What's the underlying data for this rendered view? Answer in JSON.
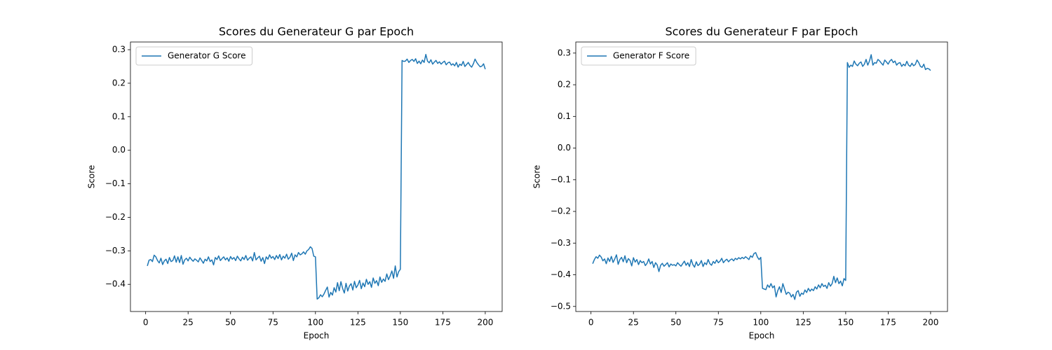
{
  "chart_data": [
    {
      "type": "line",
      "title": "Scores du Generateur G par Epoch",
      "xlabel": "Epoch",
      "ylabel": "Score",
      "x": [
        1,
        2,
        3,
        4,
        5,
        6,
        7,
        8,
        9,
        10,
        11,
        12,
        13,
        14,
        15,
        16,
        17,
        18,
        19,
        20,
        21,
        22,
        23,
        24,
        25,
        26,
        27,
        28,
        29,
        30,
        31,
        32,
        33,
        34,
        35,
        36,
        37,
        38,
        39,
        40,
        41,
        42,
        43,
        44,
        45,
        46,
        47,
        48,
        49,
        50,
        51,
        52,
        53,
        54,
        55,
        56,
        57,
        58,
        59,
        60,
        61,
        62,
        63,
        64,
        65,
        66,
        67,
        68,
        69,
        70,
        71,
        72,
        73,
        74,
        75,
        76,
        77,
        78,
        79,
        80,
        81,
        82,
        83,
        84,
        85,
        86,
        87,
        88,
        89,
        90,
        91,
        92,
        93,
        94,
        95,
        96,
        97,
        98,
        99,
        100,
        101,
        102,
        103,
        104,
        105,
        106,
        107,
        108,
        109,
        110,
        111,
        112,
        113,
        114,
        115,
        116,
        117,
        118,
        119,
        120,
        121,
        122,
        123,
        124,
        125,
        126,
        127,
        128,
        129,
        130,
        131,
        132,
        133,
        134,
        135,
        136,
        137,
        138,
        139,
        140,
        141,
        142,
        143,
        144,
        145,
        146,
        147,
        148,
        149,
        150,
        151,
        152,
        153,
        154,
        155,
        156,
        157,
        158,
        159,
        160,
        161,
        162,
        163,
        164,
        165,
        166,
        167,
        168,
        169,
        170,
        171,
        172,
        173,
        174,
        175,
        176,
        177,
        178,
        179,
        180,
        181,
        182,
        183,
        184,
        185,
        186,
        187,
        188,
        189,
        190,
        191,
        192,
        193,
        194,
        195,
        196,
        197,
        198,
        199,
        200
      ],
      "series": [
        {
          "name": "Generator G Score",
          "color": "#1f77b4",
          "values": [
            -0.345,
            -0.328,
            -0.326,
            -0.332,
            -0.313,
            -0.318,
            -0.329,
            -0.336,
            -0.322,
            -0.341,
            -0.33,
            -0.325,
            -0.338,
            -0.32,
            -0.332,
            -0.329,
            -0.315,
            -0.334,
            -0.318,
            -0.335,
            -0.314,
            -0.34,
            -0.327,
            -0.322,
            -0.33,
            -0.319,
            -0.326,
            -0.331,
            -0.324,
            -0.328,
            -0.333,
            -0.321,
            -0.329,
            -0.337,
            -0.325,
            -0.33,
            -0.318,
            -0.332,
            -0.327,
            -0.342,
            -0.32,
            -0.326,
            -0.315,
            -0.329,
            -0.323,
            -0.318,
            -0.327,
            -0.321,
            -0.331,
            -0.317,
            -0.325,
            -0.32,
            -0.329,
            -0.316,
            -0.324,
            -0.33,
            -0.319,
            -0.326,
            -0.314,
            -0.328,
            -0.322,
            -0.318,
            -0.33,
            -0.305,
            -0.327,
            -0.321,
            -0.316,
            -0.331,
            -0.32,
            -0.338,
            -0.318,
            -0.325,
            -0.312,
            -0.322,
            -0.317,
            -0.326,
            -0.314,
            -0.323,
            -0.311,
            -0.327,
            -0.316,
            -0.322,
            -0.31,
            -0.325,
            -0.319,
            -0.307,
            -0.329,
            -0.312,
            -0.318,
            -0.305,
            -0.312,
            -0.309,
            -0.303,
            -0.31,
            -0.3,
            -0.296,
            -0.288,
            -0.293,
            -0.316,
            -0.318,
            -0.444,
            -0.44,
            -0.431,
            -0.437,
            -0.429,
            -0.418,
            -0.408,
            -0.438,
            -0.424,
            -0.432,
            -0.41,
            -0.423,
            -0.395,
            -0.419,
            -0.392,
            -0.412,
            -0.426,
            -0.397,
            -0.42,
            -0.405,
            -0.398,
            -0.417,
            -0.391,
            -0.41,
            -0.402,
            -0.388,
            -0.413,
            -0.396,
            -0.407,
            -0.385,
            -0.4,
            -0.392,
            -0.409,
            -0.381,
            -0.397,
            -0.389,
            -0.404,
            -0.378,
            -0.394,
            -0.384,
            -0.391,
            -0.369,
            -0.386,
            -0.375,
            -0.36,
            -0.382,
            -0.345,
            -0.378,
            -0.362,
            -0.355,
            0.268,
            0.265,
            0.266,
            0.272,
            0.262,
            0.268,
            0.271,
            0.265,
            0.273,
            0.259,
            0.266,
            0.258,
            0.269,
            0.262,
            0.286,
            0.266,
            0.261,
            0.27,
            0.257,
            0.263,
            0.268,
            0.259,
            0.264,
            0.257,
            0.262,
            0.266,
            0.255,
            0.261,
            0.263,
            0.254,
            0.258,
            0.252,
            0.262,
            0.248,
            0.257,
            0.253,
            0.265,
            0.25,
            0.256,
            0.262,
            0.253,
            0.248,
            0.258,
            0.272,
            0.262,
            0.255,
            0.249,
            0.251,
            0.258,
            0.242
          ]
        }
      ],
      "xlim": [
        -8.95,
        209.95
      ],
      "xticks": [
        0,
        25,
        50,
        75,
        100,
        125,
        150,
        175,
        200
      ],
      "ylim": [
        -0.481,
        0.323
      ],
      "yticks": [
        {
          "value": -0.4,
          "label": "−0.4"
        },
        {
          "value": -0.3,
          "label": "−0.3"
        },
        {
          "value": -0.2,
          "label": "−0.2"
        },
        {
          "value": -0.1,
          "label": "−0.1"
        },
        {
          "value": 0,
          "label": "0.0"
        },
        0.1,
        0.2,
        0.3
      ],
      "legend": "upper left",
      "grid": false
    },
    {
      "type": "line",
      "title": "Scores du Generateur F par Epoch",
      "xlabel": "Epoch",
      "ylabel": "Score",
      "x": [
        1,
        2,
        3,
        4,
        5,
        6,
        7,
        8,
        9,
        10,
        11,
        12,
        13,
        14,
        15,
        16,
        17,
        18,
        19,
        20,
        21,
        22,
        23,
        24,
        25,
        26,
        27,
        28,
        29,
        30,
        31,
        32,
        33,
        34,
        35,
        36,
        37,
        38,
        39,
        40,
        41,
        42,
        43,
        44,
        45,
        46,
        47,
        48,
        49,
        50,
        51,
        52,
        53,
        54,
        55,
        56,
        57,
        58,
        59,
        60,
        61,
        62,
        63,
        64,
        65,
        66,
        67,
        68,
        69,
        70,
        71,
        72,
        73,
        74,
        75,
        76,
        77,
        78,
        79,
        80,
        81,
        82,
        83,
        84,
        85,
        86,
        87,
        88,
        89,
        90,
        91,
        92,
        93,
        94,
        95,
        96,
        97,
        98,
        99,
        100,
        101,
        102,
        103,
        104,
        105,
        106,
        107,
        108,
        109,
        110,
        111,
        112,
        113,
        114,
        115,
        116,
        117,
        118,
        119,
        120,
        121,
        122,
        123,
        124,
        125,
        126,
        127,
        128,
        129,
        130,
        131,
        132,
        133,
        134,
        135,
        136,
        137,
        138,
        139,
        140,
        141,
        142,
        143,
        144,
        145,
        146,
        147,
        148,
        149,
        150,
        151,
        152,
        153,
        154,
        155,
        156,
        157,
        158,
        159,
        160,
        161,
        162,
        163,
        164,
        165,
        166,
        167,
        168,
        169,
        170,
        171,
        172,
        173,
        174,
        175,
        176,
        177,
        178,
        179,
        180,
        181,
        182,
        183,
        184,
        185,
        186,
        187,
        188,
        189,
        190,
        191,
        192,
        193,
        194,
        195,
        196,
        197,
        198,
        199,
        200
      ],
      "series": [
        {
          "name": "Generator F Score",
          "color": "#1f77b4",
          "values": [
            -0.365,
            -0.352,
            -0.343,
            -0.348,
            -0.338,
            -0.344,
            -0.356,
            -0.35,
            -0.365,
            -0.347,
            -0.358,
            -0.342,
            -0.361,
            -0.35,
            -0.337,
            -0.367,
            -0.352,
            -0.345,
            -0.359,
            -0.34,
            -0.362,
            -0.349,
            -0.355,
            -0.372,
            -0.346,
            -0.36,
            -0.352,
            -0.368,
            -0.355,
            -0.362,
            -0.358,
            -0.371,
            -0.364,
            -0.35,
            -0.366,
            -0.358,
            -0.377,
            -0.362,
            -0.369,
            -0.39,
            -0.37,
            -0.364,
            -0.373,
            -0.368,
            -0.362,
            -0.375,
            -0.366,
            -0.37,
            -0.368,
            -0.372,
            -0.362,
            -0.368,
            -0.373,
            -0.365,
            -0.357,
            -0.37,
            -0.362,
            -0.374,
            -0.352,
            -0.368,
            -0.376,
            -0.359,
            -0.371,
            -0.366,
            -0.355,
            -0.374,
            -0.362,
            -0.368,
            -0.352,
            -0.365,
            -0.37,
            -0.358,
            -0.364,
            -0.353,
            -0.362,
            -0.357,
            -0.348,
            -0.362,
            -0.355,
            -0.351,
            -0.359,
            -0.353,
            -0.35,
            -0.356,
            -0.348,
            -0.352,
            -0.346,
            -0.35,
            -0.345,
            -0.349,
            -0.343,
            -0.347,
            -0.352,
            -0.34,
            -0.345,
            -0.333,
            -0.33,
            -0.344,
            -0.352,
            -0.345,
            -0.443,
            -0.445,
            -0.447,
            -0.432,
            -0.44,
            -0.428,
            -0.441,
            -0.435,
            -0.47,
            -0.45,
            -0.438,
            -0.456,
            -0.428,
            -0.445,
            -0.462,
            -0.455,
            -0.458,
            -0.47,
            -0.462,
            -0.478,
            -0.455,
            -0.45,
            -0.468,
            -0.458,
            -0.462,
            -0.448,
            -0.456,
            -0.443,
            -0.452,
            -0.445,
            -0.45,
            -0.438,
            -0.445,
            -0.432,
            -0.441,
            -0.428,
            -0.437,
            -0.433,
            -0.443,
            -0.425,
            -0.436,
            -0.428,
            -0.405,
            -0.425,
            -0.41,
            -0.428,
            -0.42,
            -0.435,
            -0.412,
            -0.418,
            0.27,
            0.255,
            0.262,
            0.258,
            0.275,
            0.265,
            0.26,
            0.268,
            0.272,
            0.258,
            0.265,
            0.28,
            0.262,
            0.275,
            0.295,
            0.262,
            0.27,
            0.268,
            0.28,
            0.275,
            0.268,
            0.262,
            0.278,
            0.272,
            0.265,
            0.275,
            0.28,
            0.27,
            0.275,
            0.262,
            0.268,
            0.27,
            0.258,
            0.265,
            0.26,
            0.274,
            0.262,
            0.258,
            0.268,
            0.26,
            0.264,
            0.278,
            0.27,
            0.258,
            0.255,
            0.265,
            0.248,
            0.252,
            0.25,
            0.245
          ]
        }
      ],
      "xlim": [
        -8.95,
        209.95
      ],
      "xticks": [
        0,
        25,
        50,
        75,
        100,
        125,
        150,
        175,
        200
      ],
      "ylim": [
        -0.516,
        0.335
      ],
      "yticks": [
        {
          "value": -0.5,
          "label": "−0.5"
        },
        {
          "value": -0.4,
          "label": "−0.4"
        },
        {
          "value": -0.3,
          "label": "−0.3"
        },
        {
          "value": -0.2,
          "label": "−0.2"
        },
        {
          "value": -0.1,
          "label": "−0.1"
        },
        {
          "value": 0,
          "label": "0.0"
        },
        0.1,
        0.2,
        0.3
      ],
      "legend": "upper left",
      "grid": false
    }
  ]
}
